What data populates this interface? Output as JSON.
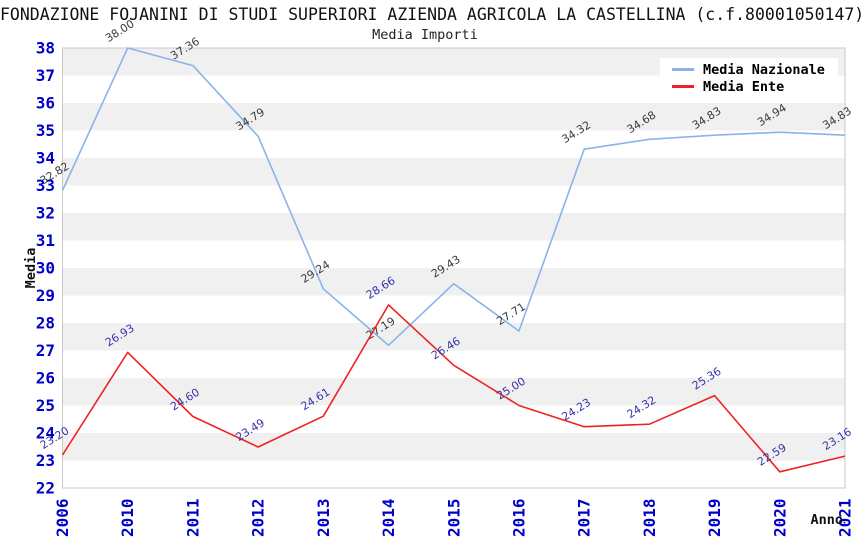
{
  "title": "FONDAZIONE FOJANINI DI STUDI SUPERIORI AZIENDA AGRICOLA LA CASTELLINA (c.f.80001050147)",
  "subtitle": "Media Importi",
  "colors": {
    "background": "#ffffff",
    "band": "#f0f0f0",
    "plot_border": "#c8c8c8",
    "axis_tick_label": "#0000cc"
  },
  "chart_data": {
    "type": "line",
    "x": [
      "2006",
      "2010",
      "2011",
      "2012",
      "2013",
      "2014",
      "2015",
      "2016",
      "2017",
      "2018",
      "2019",
      "2020",
      "2021"
    ],
    "xlabel": "Anno",
    "ylabel": "Media",
    "ylim": [
      22,
      38
    ],
    "ytick_step": 1,
    "grid": "alternating horizontal bands, gray on odd-to-even unit rows",
    "legend_position": "top-right",
    "point_labels": "each point annotated with value, 2 decimals, rotated ~30deg",
    "series": [
      {
        "name": "Media Nazionale",
        "color": "#8ab4e8",
        "label_color": "#3a3a3a",
        "values": [
          32.82,
          38.0,
          37.36,
          34.79,
          29.24,
          27.19,
          29.43,
          27.71,
          34.32,
          34.68,
          34.83,
          34.94,
          34.83
        ]
      },
      {
        "name": "Media Ente",
        "color": "#ee2222",
        "label_color": "#3333aa",
        "values": [
          23.2,
          26.93,
          24.6,
          23.49,
          24.61,
          28.66,
          26.46,
          25.0,
          24.23,
          24.32,
          25.36,
          22.59,
          23.16
        ]
      }
    ]
  }
}
